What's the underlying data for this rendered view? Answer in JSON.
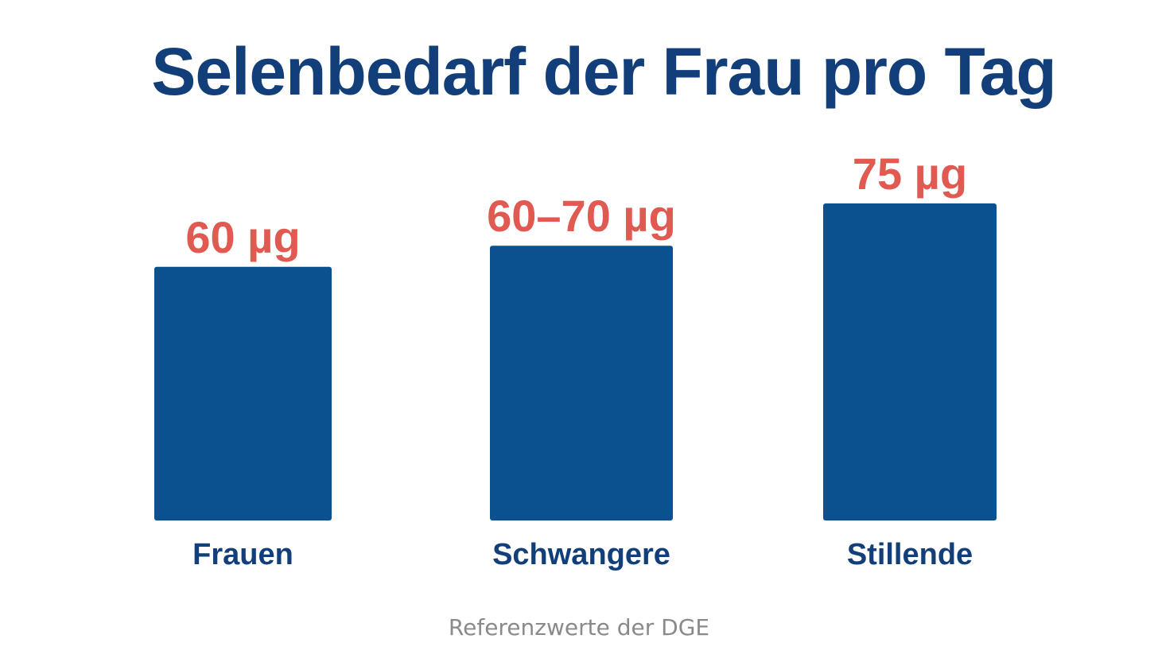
{
  "chart_data": {
    "type": "bar",
    "title": "Selenbedarf der Frau pro Tag",
    "categories": [
      "Frauen",
      "Schwangere",
      "Stillende"
    ],
    "values": [
      60,
      65,
      75
    ],
    "data_labels": [
      "60 µg",
      "60–70 µg",
      "75 µg"
    ],
    "ylim": [
      0,
      75
    ],
    "grid": false,
    "legend": "none",
    "xlabel": "",
    "ylabel": ""
  },
  "footnote": "Referenzwerte der DGE",
  "colors": {
    "title": "#123f7a",
    "bar": "#0b5190",
    "value_label": "#e05a52",
    "category_label": "#123f7a",
    "footnote": "#8a8a8a",
    "background": "#ffffff"
  }
}
